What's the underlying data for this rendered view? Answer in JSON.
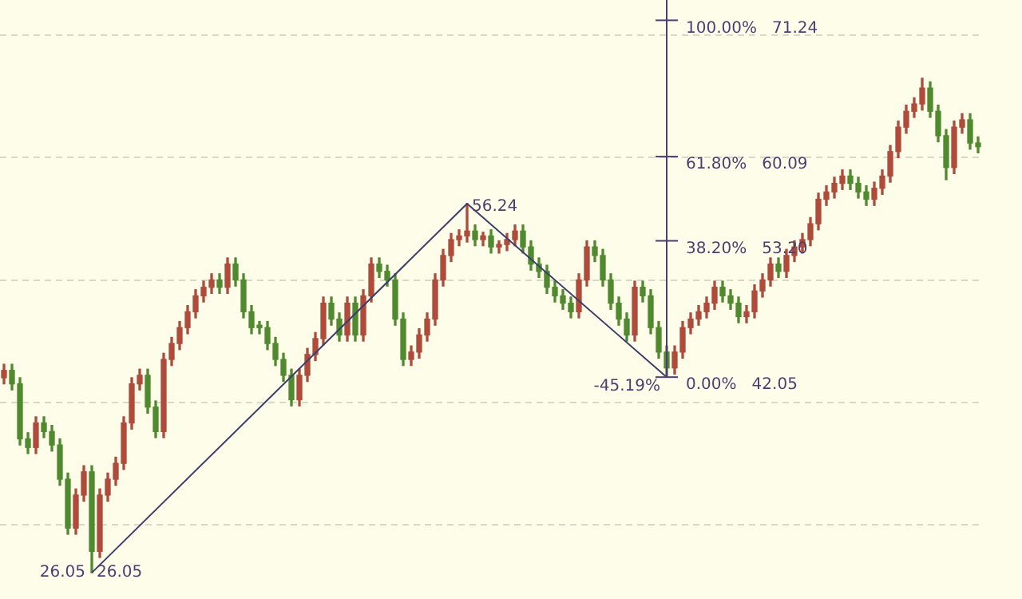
{
  "chart_data": {
    "type": "candlestick",
    "categories": [
      null,
      null,
      null,
      null,
      null,
      null,
      null,
      null,
      null,
      null,
      null,
      null,
      null,
      null,
      null,
      null,
      null,
      null,
      null,
      null,
      null,
      null,
      null,
      null,
      null,
      null,
      null,
      null,
      null,
      null,
      null,
      null,
      null,
      null,
      null,
      null,
      null,
      null,
      null,
      null,
      null,
      null,
      null,
      null,
      null,
      null,
      null,
      null,
      null,
      null,
      null,
      null,
      null,
      null,
      null,
      null,
      null,
      null,
      null,
      null,
      null,
      null,
      null,
      null,
      null,
      null,
      null,
      null,
      null,
      null,
      null,
      null,
      null,
      null,
      null,
      null,
      null,
      null,
      null,
      null,
      null,
      null,
      null,
      null,
      null,
      null,
      null,
      null,
      null,
      null,
      null,
      null,
      null,
      null,
      null,
      null,
      null,
      null,
      null,
      null,
      null,
      null,
      null,
      null,
      null,
      null,
      null,
      null,
      null,
      null,
      null,
      null,
      null,
      null,
      null,
      null,
      null,
      null,
      null,
      null,
      null,
      null,
      null
    ],
    "series": [
      {
        "colors": [
          "#b04a3a",
          "#4f8a2e",
          "#4f8a2e",
          "#4f8a2e",
          "#b04a3a",
          "#4f8a2e",
          "#4f8a2e",
          "#4f8a2e",
          "#4f8a2e",
          "#b04a3a",
          "#b04a3a",
          "#4f8a2e",
          "#b04a3a",
          "#b04a3a",
          "#b04a3a",
          "#b04a3a",
          "#b04a3a",
          "#b04a3a",
          "#4f8a2e",
          "#4f8a2e",
          "#b04a3a",
          "#b04a3a",
          "#b04a3a",
          "#b04a3a",
          "#b04a3a",
          "#b04a3a",
          "#b04a3a",
          "#4f8a2e",
          "#b04a3a",
          "#4f8a2e",
          "#4f8a2e",
          "#4f8a2e",
          "#4f8a2e",
          "#4f8a2e",
          "#4f8a2e",
          "#4f8a2e",
          "#4f8a2e",
          "#b04a3a",
          "#b04a3a",
          "#b04a3a",
          "#b04a3a",
          "#4f8a2e",
          "#4f8a2e",
          "#b04a3a",
          "#4f8a2e",
          "#b04a3a",
          "#b04a3a",
          "#4f8a2e",
          "#4f8a2e",
          "#4f8a2e",
          "#4f8a2e",
          "#b04a3a",
          "#b04a3a",
          "#b04a3a",
          "#b04a3a",
          "#b04a3a",
          "#b04a3a",
          "#b04a3a",
          "#b04a3a",
          "#4f8a2e",
          "#b04a3a",
          "#4f8a2e",
          "#b04a3a",
          "#b04a3a",
          "#b04a3a",
          "#4f8a2e",
          "#4f8a2e",
          "#4f8a2e",
          "#4f8a2e",
          "#4f8a2e",
          "#4f8a2e",
          "#4f8a2e",
          "#b04a3a",
          "#b04a3a",
          "#4f8a2e",
          "#4f8a2e",
          "#4f8a2e",
          "#4f8a2e",
          "#4f8a2e",
          "#b04a3a",
          "#4f8a2e",
          "#4f8a2e",
          "#4f8a2e",
          "#4f8a2e",
          "#b04a3a",
          "#b04a3a",
          "#b04a3a",
          "#b04a3a",
          "#b04a3a",
          "#b04a3a",
          "#4f8a2e",
          "#4f8a2e",
          "#4f8a2e",
          "#b04a3a",
          "#b04a3a",
          "#b04a3a",
          "#b04a3a",
          "#4f8a2e",
          "#b04a3a",
          "#b04a3a",
          "#b04a3a",
          "#b04a3a",
          "#b04a3a",
          "#b04a3a",
          "#b04a3a",
          "#b04a3a",
          "#4f8a2e",
          "#4f8a2e",
          "#4f8a2e",
          "#b04a3a",
          "#b04a3a",
          "#b04a3a",
          "#b04a3a",
          "#b04a3a",
          "#b04a3a",
          "#b04a3a",
          "#4f8a2e",
          "#4f8a2e",
          "#4f8a2e",
          "#b04a3a",
          "#b04a3a",
          "#4f8a2e",
          "#4f8a2e"
        ],
        "ohlc": [
          [
            42.0,
            43.1,
            41.5,
            42.6
          ],
          [
            42.6,
            43.1,
            41.0,
            41.5
          ],
          [
            41.5,
            42.0,
            36.5,
            37.0
          ],
          [
            37.0,
            37.5,
            35.8,
            36.3
          ],
          [
            36.3,
            38.8,
            35.8,
            38.3
          ],
          [
            38.3,
            38.8,
            37.1,
            37.6
          ],
          [
            37.6,
            38.1,
            36.0,
            36.5
          ],
          [
            36.5,
            37.0,
            33.2,
            33.7
          ],
          [
            33.7,
            34.2,
            29.2,
            29.7
          ],
          [
            29.7,
            32.9,
            29.2,
            32.4
          ],
          [
            32.4,
            34.8,
            31.9,
            34.3
          ],
          [
            34.3,
            34.8,
            26.05,
            27.8
          ],
          [
            27.8,
            32.9,
            27.3,
            32.4
          ],
          [
            32.4,
            34.2,
            31.9,
            33.7
          ],
          [
            33.7,
            35.5,
            33.2,
            35.0
          ],
          [
            35.0,
            38.8,
            34.5,
            38.3
          ],
          [
            38.3,
            42.0,
            37.8,
            41.5
          ],
          [
            41.5,
            42.7,
            41.0,
            42.2
          ],
          [
            42.2,
            42.7,
            39.1,
            39.6
          ],
          [
            39.6,
            40.1,
            37.1,
            37.6
          ],
          [
            37.6,
            44.0,
            37.1,
            43.5
          ],
          [
            43.5,
            45.3,
            43.0,
            44.8
          ],
          [
            44.8,
            46.6,
            44.3,
            46.1
          ],
          [
            46.1,
            47.9,
            45.6,
            47.4
          ],
          [
            47.4,
            49.2,
            46.9,
            48.7
          ],
          [
            48.7,
            49.9,
            48.2,
            49.4
          ],
          [
            49.4,
            50.5,
            48.9,
            50.0
          ],
          [
            50.0,
            50.5,
            48.9,
            49.4
          ],
          [
            49.4,
            51.8,
            48.9,
            51.3
          ],
          [
            51.3,
            51.8,
            49.5,
            50.0
          ],
          [
            50.0,
            50.5,
            46.9,
            47.4
          ],
          [
            47.4,
            47.9,
            45.6,
            46.1
          ],
          [
            46.3,
            46.6,
            45.6,
            46.1
          ],
          [
            46.1,
            46.6,
            44.3,
            44.8
          ],
          [
            44.8,
            45.3,
            43.0,
            43.5
          ],
          [
            43.5,
            44.0,
            41.7,
            42.2
          ],
          [
            42.2,
            42.7,
            39.7,
            40.2
          ],
          [
            40.2,
            42.7,
            39.7,
            42.2
          ],
          [
            42.2,
            44.4,
            41.7,
            43.9
          ],
          [
            43.9,
            45.7,
            43.4,
            45.2
          ],
          [
            45.2,
            48.6,
            44.7,
            48.1
          ],
          [
            48.1,
            48.6,
            46.3,
            46.8
          ],
          [
            46.8,
            47.3,
            45.0,
            45.5
          ],
          [
            45.5,
            48.6,
            45.0,
            48.1
          ],
          [
            48.1,
            48.6,
            45.0,
            45.5
          ],
          [
            45.5,
            49.2,
            45.0,
            48.7
          ],
          [
            48.7,
            51.8,
            48.2,
            51.3
          ],
          [
            51.3,
            51.8,
            50.2,
            50.7
          ],
          [
            50.7,
            51.2,
            49.5,
            50.0
          ],
          [
            50.0,
            50.5,
            46.3,
            46.8
          ],
          [
            46.8,
            47.3,
            43.0,
            43.5
          ],
          [
            43.5,
            44.6,
            43.0,
            44.1
          ],
          [
            44.1,
            46.0,
            43.6,
            45.5
          ],
          [
            45.5,
            47.3,
            45.0,
            46.8
          ],
          [
            46.8,
            50.5,
            46.3,
            50.0
          ],
          [
            50.0,
            52.5,
            49.5,
            52.0
          ],
          [
            52.0,
            53.8,
            51.5,
            53.3
          ],
          [
            53.3,
            54.1,
            52.8,
            53.6
          ],
          [
            53.6,
            56.24,
            53.1,
            54.0
          ],
          [
            54.0,
            54.5,
            52.8,
            53.3
          ],
          [
            53.3,
            53.9,
            52.8,
            53.6
          ],
          [
            53.6,
            54.1,
            52.2,
            52.7
          ],
          [
            52.7,
            53.2,
            52.2,
            52.9
          ],
          [
            52.9,
            53.8,
            52.4,
            53.3
          ],
          [
            53.3,
            54.5,
            52.8,
            54.0
          ],
          [
            54.0,
            54.5,
            52.2,
            52.7
          ],
          [
            52.7,
            53.2,
            50.8,
            51.3
          ],
          [
            51.3,
            51.8,
            50.2,
            50.7
          ],
          [
            50.7,
            51.2,
            48.9,
            49.4
          ],
          [
            49.4,
            49.9,
            48.2,
            48.7
          ],
          [
            48.7,
            49.2,
            47.6,
            48.1
          ],
          [
            48.1,
            48.6,
            46.9,
            47.4
          ],
          [
            47.4,
            50.5,
            46.9,
            50.0
          ],
          [
            50.0,
            53.2,
            49.5,
            52.7
          ],
          [
            52.7,
            53.2,
            51.5,
            52.0
          ],
          [
            52.0,
            52.5,
            49.5,
            50.0
          ],
          [
            50.0,
            50.5,
            47.6,
            48.1
          ],
          [
            48.1,
            48.6,
            46.3,
            46.8
          ],
          [
            46.8,
            47.3,
            45.0,
            45.5
          ],
          [
            45.5,
            49.9,
            45.0,
            49.4
          ],
          [
            49.4,
            49.9,
            48.2,
            48.7
          ],
          [
            48.7,
            49.2,
            45.6,
            46.1
          ],
          [
            46.1,
            46.6,
            43.6,
            44.1
          ],
          [
            44.1,
            44.6,
            42.05,
            42.8
          ],
          [
            42.8,
            44.6,
            42.3,
            44.1
          ],
          [
            44.1,
            46.6,
            43.6,
            46.1
          ],
          [
            46.1,
            47.3,
            45.6,
            46.8
          ],
          [
            46.8,
            47.9,
            46.3,
            47.4
          ],
          [
            47.4,
            48.6,
            46.9,
            48.1
          ],
          [
            48.1,
            49.9,
            47.6,
            49.4
          ],
          [
            49.4,
            49.9,
            48.2,
            48.7
          ],
          [
            48.7,
            49.2,
            47.6,
            48.1
          ],
          [
            48.1,
            48.6,
            46.5,
            47.0
          ],
          [
            47.0,
            47.9,
            46.5,
            47.4
          ],
          [
            47.4,
            49.6,
            46.9,
            49.1
          ],
          [
            49.1,
            50.5,
            48.6,
            50.0
          ],
          [
            50.0,
            51.8,
            49.5,
            51.3
          ],
          [
            51.3,
            51.8,
            50.2,
            50.7
          ],
          [
            50.7,
            52.5,
            50.2,
            52.0
          ],
          [
            52.0,
            53.2,
            51.5,
            52.7
          ],
          [
            52.7,
            53.8,
            52.2,
            53.3
          ],
          [
            53.3,
            55.1,
            52.8,
            54.6
          ],
          [
            54.6,
            57.1,
            54.1,
            56.6
          ],
          [
            56.6,
            57.7,
            56.1,
            57.2
          ],
          [
            57.2,
            58.4,
            56.7,
            57.9
          ],
          [
            57.9,
            59.0,
            57.4,
            58.5
          ],
          [
            58.5,
            59.0,
            57.4,
            57.9
          ],
          [
            57.9,
            58.4,
            56.7,
            57.2
          ],
          [
            57.2,
            57.7,
            56.1,
            56.6
          ],
          [
            56.6,
            58.0,
            56.1,
            57.5
          ],
          [
            57.5,
            59.0,
            57.0,
            58.5
          ],
          [
            58.5,
            61.0,
            58.0,
            60.5
          ],
          [
            60.5,
            63.0,
            60.0,
            62.5
          ],
          [
            62.5,
            64.3,
            62.0,
            63.8
          ],
          [
            63.8,
            64.9,
            63.3,
            64.4
          ],
          [
            64.4,
            66.5,
            63.9,
            65.7
          ],
          [
            65.7,
            66.2,
            63.3,
            63.8
          ],
          [
            63.8,
            64.3,
            61.3,
            61.8
          ],
          [
            61.8,
            62.3,
            58.2,
            59.2
          ],
          [
            59.2,
            63.0,
            58.7,
            62.5
          ],
          [
            62.5,
            63.6,
            62.0,
            63.1
          ],
          [
            63.1,
            63.6,
            60.7,
            61.2
          ],
          [
            61.2,
            61.7,
            60.4,
            60.9
          ]
        ]
      },
      {
        "type": "line",
        "color": "#3d3d6b",
        "values": [
          null,
          null,
          null,
          null,
          null,
          null,
          null,
          null,
          null,
          null,
          null,
          26.05,
          null,
          null,
          null,
          null,
          null,
          null,
          null,
          null,
          null,
          null,
          null,
          null,
          null,
          null,
          null,
          null,
          null,
          null,
          null,
          null,
          null,
          null,
          null,
          null,
          null,
          null,
          null,
          null,
          null,
          null,
          null,
          null,
          null,
          null,
          null,
          null,
          null,
          null,
          null,
          null,
          null,
          null,
          null,
          null,
          null,
          null,
          56.24,
          null,
          null,
          null,
          null,
          null,
          null,
          null,
          null,
          null,
          null,
          null,
          null,
          null,
          null,
          null,
          null,
          null,
          null,
          null,
          null,
          null,
          null,
          null,
          null,
          42.05,
          null,
          null,
          null,
          null,
          null,
          null,
          null,
          null,
          null,
          null,
          null,
          null,
          null,
          null,
          null,
          null,
          null,
          null,
          null,
          null,
          null,
          null,
          null,
          null,
          null,
          null,
          null,
          null,
          null,
          null,
          null,
          null,
          null,
          null,
          null,
          null,
          null,
          null,
          null
        ]
      }
    ],
    "ylim": [
      23.9,
      72.9
    ],
    "yticks": [
      {
        "value": 30,
        "label": null
      },
      {
        "value": 40,
        "label": null
      },
      {
        "value": 50,
        "label": null
      },
      {
        "value": 60,
        "label": null
      },
      {
        "value": 70,
        "label": null
      }
    ],
    "grid": "y",
    "tick_labels": false,
    "legend": false,
    "ref_lines": [
      {
        "axis": "y",
        "value": 71.24,
        "label": "100.00%   71.24",
        "color": "#4b3f72"
      },
      {
        "axis": "y",
        "value": 60.09,
        "label": "61.80%   60.09",
        "color": "#4b3f72"
      },
      {
        "axis": "y",
        "value": 53.2,
        "label": "38.20%   53.20",
        "color": "#4b3f72"
      },
      {
        "axis": "y",
        "value": 42.05,
        "label": "0.00%   42.05",
        "color": "#4b3f72"
      }
    ],
    "annotations": [
      "26.05",
      "26.05",
      "56.24",
      "-45.19%"
    ]
  }
}
